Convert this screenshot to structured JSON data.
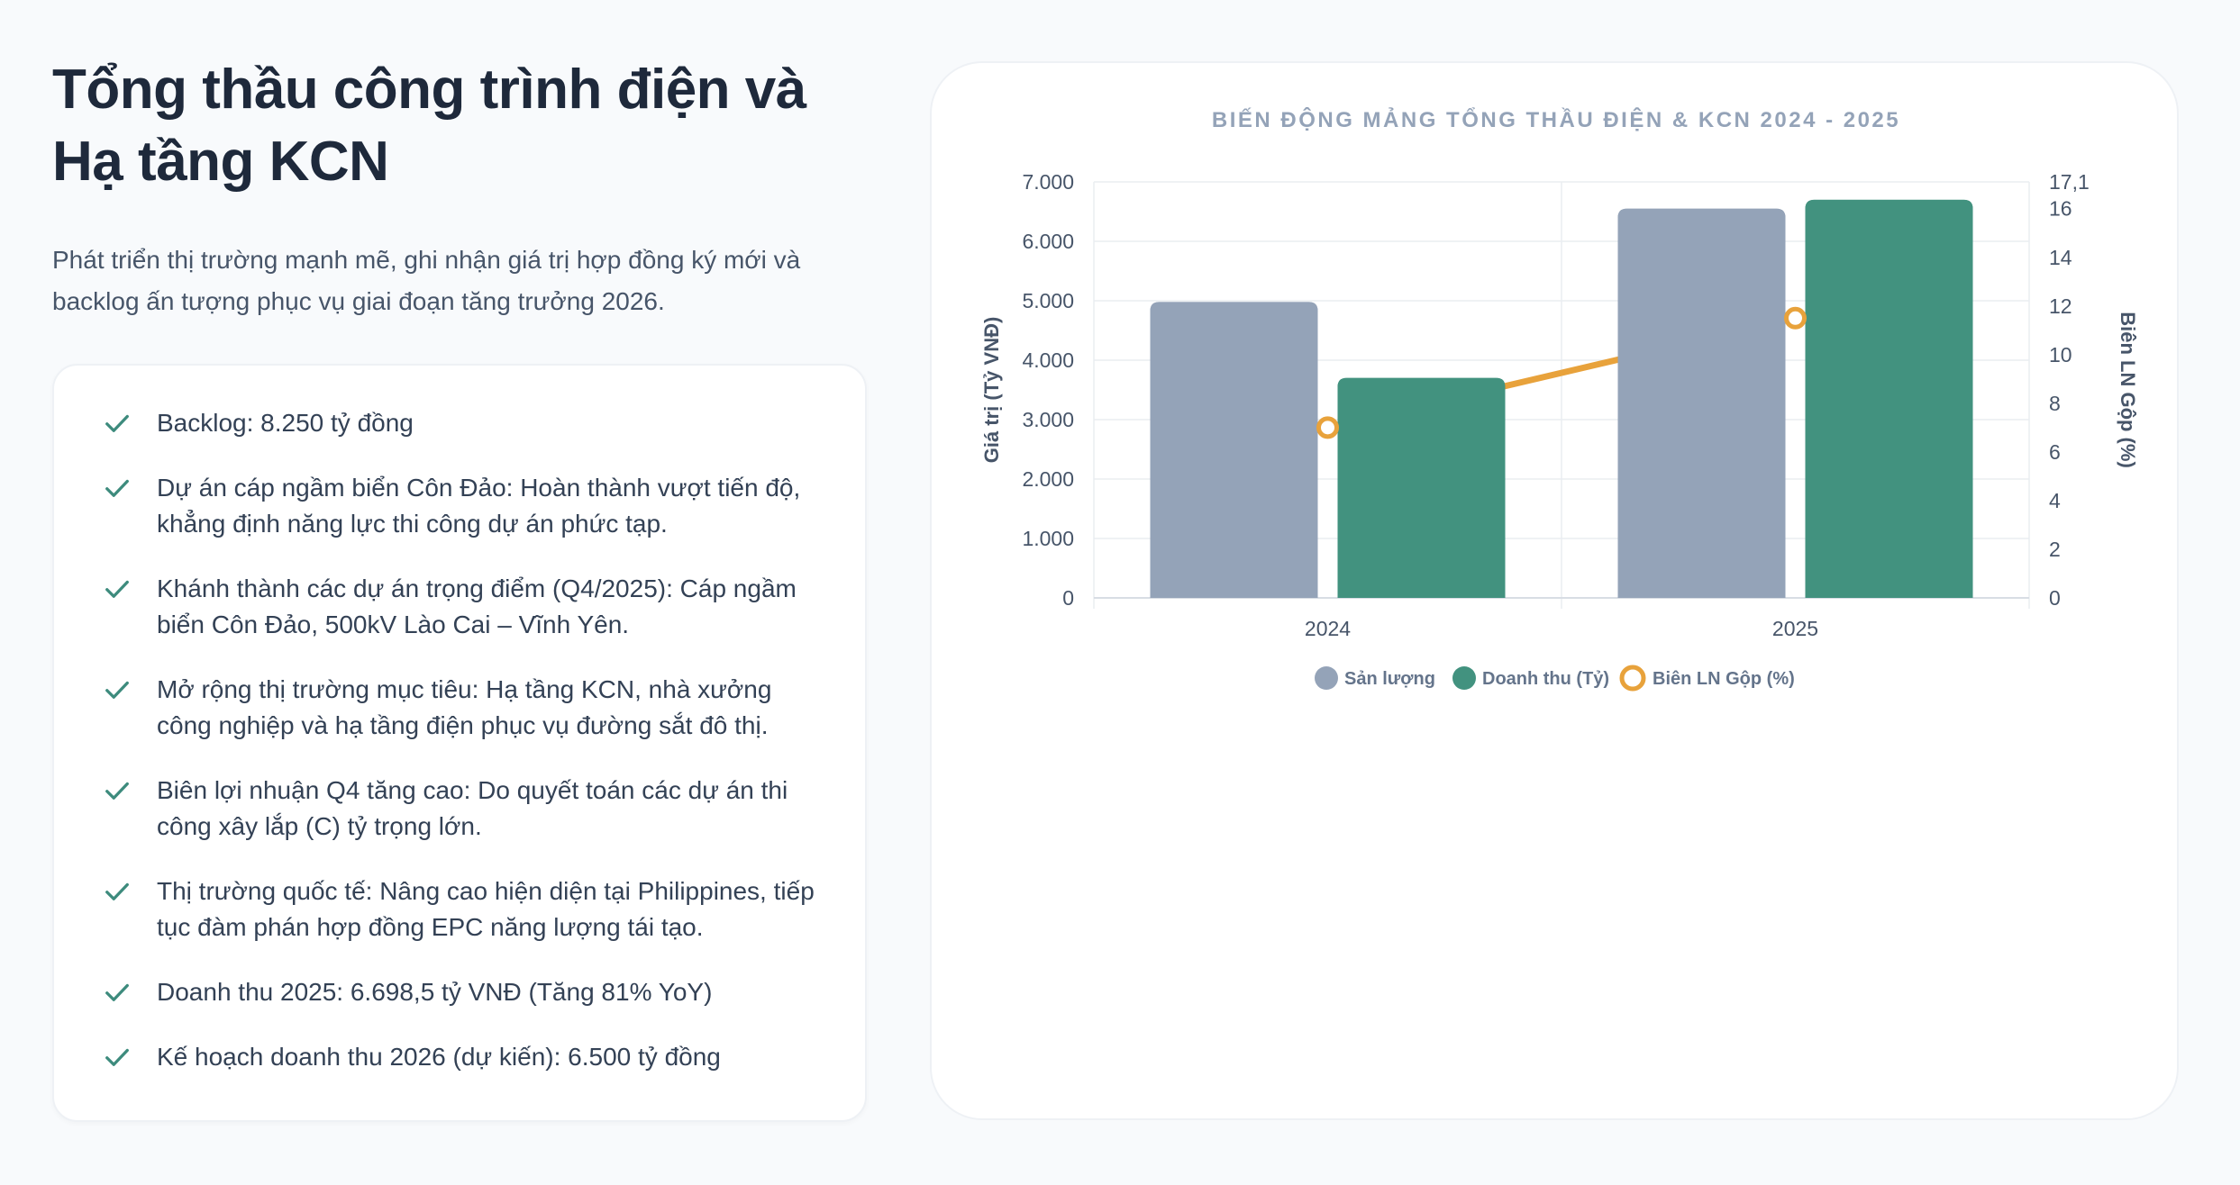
{
  "header": {
    "title_line1": "Tổng thầu công trình điện và",
    "title_line2": "Hạ tầng KCN",
    "description": "Phát triển thị trường mạnh mẽ, ghi nhận giá trị hợp đồng ký mới và backlog ấn tượng phục vụ giai đoạn tăng trưởng 2026."
  },
  "highlights": [
    "Backlog: 8.250 tỷ đồng",
    "Dự án cáp ngầm biển Côn Đảo: Hoàn thành vượt tiến độ, khẳng định năng lực thi công dự án phức tạp.",
    "Khánh thành các dự án trọng điểm (Q4/2025): Cáp ngầm biển Côn Đảo, 500kV Lào Cai – Vĩnh Yên.",
    "Mở rộng thị trường mục tiêu: Hạ tầng KCN, nhà xưởng công nghiệp và hạ tầng điện phục vụ đường sắt đô thị.",
    "Biên lợi nhuận Q4 tăng cao: Do quyết toán các dự án thi công xây lắp (C) tỷ trọng lớn.",
    "Thị trường quốc tế: Nâng cao hiện diện tại Philippines, tiếp tục đàm phán hợp đồng EPC năng lượng tái tạo.",
    "Doanh thu 2025: 6.698,5 tỷ VNĐ (Tăng 81% YoY)",
    "Kế hoạch doanh thu 2026 (dự kiến): 6.500 tỷ đồng"
  ],
  "colors": {
    "check": "#3d8b7d",
    "san_luong": "#94a3b8",
    "doanh_thu": "#42927f",
    "bien_ln": "#e8a23b",
    "grid": "#eaedf1"
  },
  "chart_data": {
    "type": "bar",
    "title": "BIẾN ĐỘNG MẢNG TỔNG THẦU ĐIỆN & KCN 2024 - 2025",
    "categories": [
      "2024",
      "2025"
    ],
    "series": [
      {
        "name": "Sản lượng",
        "type": "bar",
        "axis": "left",
        "values": [
          4980,
          6550
        ]
      },
      {
        "name": "Doanh thu (Tỷ)",
        "type": "bar",
        "axis": "left",
        "values": [
          3700,
          6698.5
        ]
      },
      {
        "name": "Biên LN Gộp (%)",
        "type": "line",
        "axis": "right",
        "values": [
          7.0,
          11.5
        ]
      }
    ],
    "ylabel": "Giá trị (Tỷ VNĐ)",
    "y2label": "Biên LN Gộp (%)",
    "ylim": [
      0,
      7000
    ],
    "y2lim": [
      0,
      17.1
    ],
    "yticks": [
      "0",
      "1.000",
      "2.000",
      "3.000",
      "4.000",
      "5.000",
      "6.000",
      "7.000"
    ],
    "y2ticks": [
      "0",
      "2",
      "4",
      "6",
      "8",
      "10",
      "12",
      "14",
      "16",
      "17,1"
    ],
    "legend": "bottom",
    "grid": true
  }
}
